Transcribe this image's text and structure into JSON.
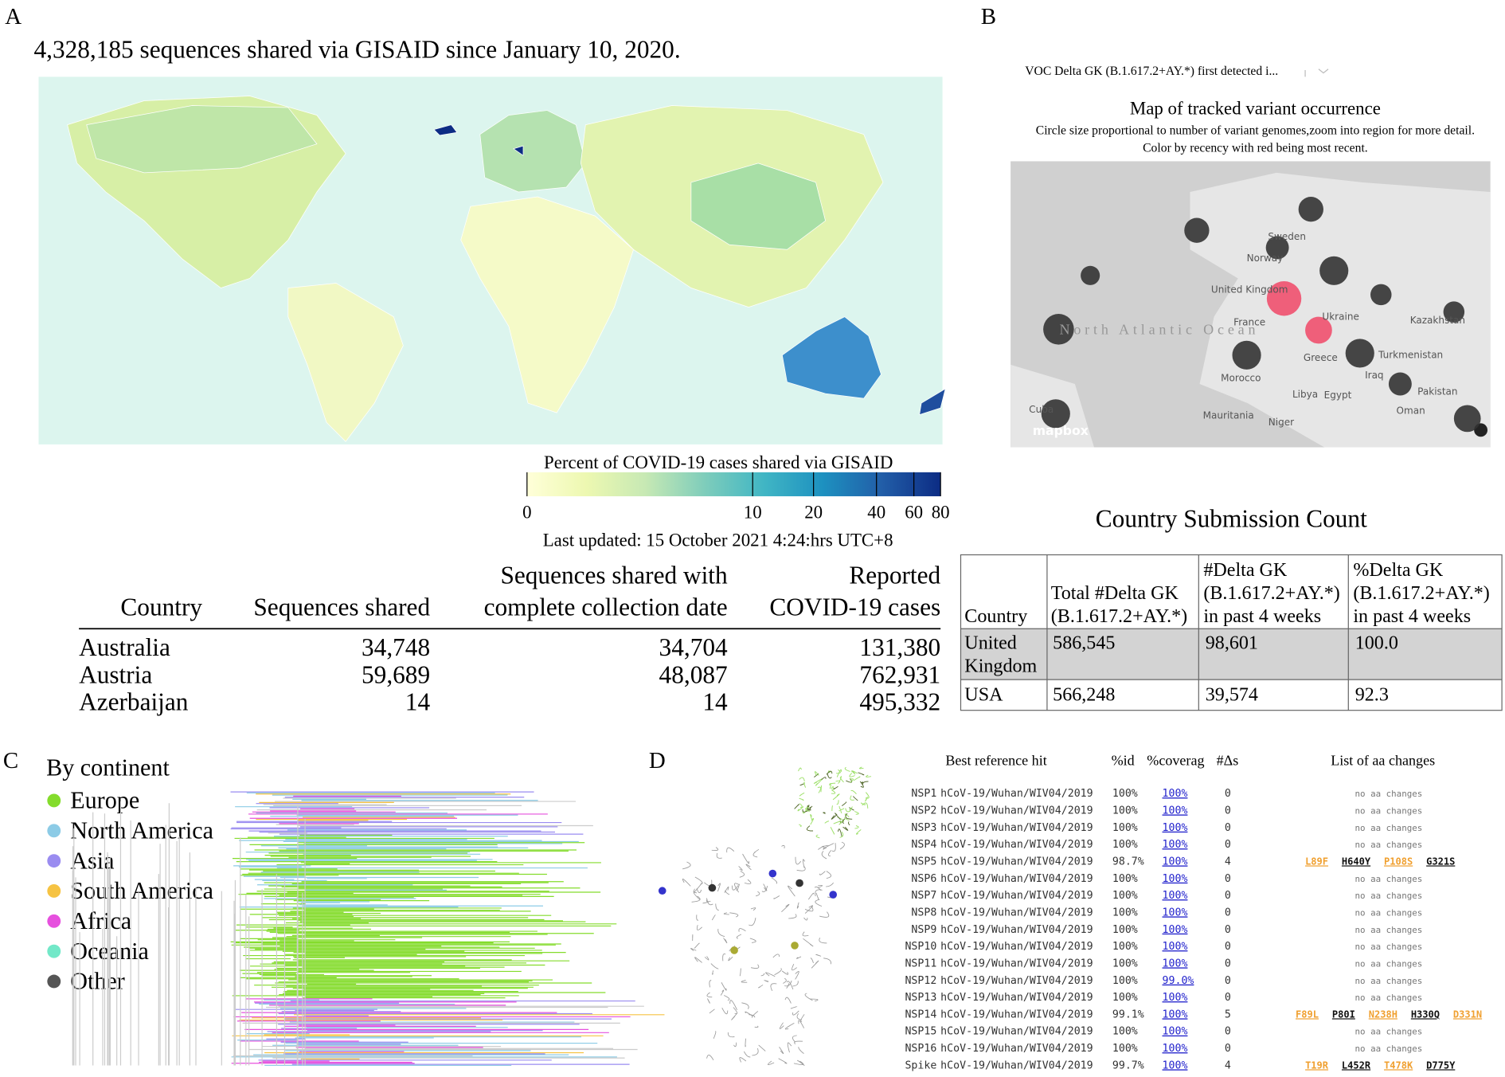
{
  "panels": [
    "A",
    "B",
    "C",
    "D"
  ],
  "panel_a": {
    "headline": "4,328,185 sequences shared via GISAID since January 10, 2020.",
    "colorbar": {
      "title": "Percent of COVID-19 cases shared via GISAID",
      "scale": "log1p",
      "lim": [
        0,
        80
      ],
      "ticks": [
        0,
        10,
        20,
        40,
        60,
        80
      ],
      "colors": [
        "#ffffd9",
        "#edf8b1",
        "#c7e9b4",
        "#7fcdbb",
        "#41b6c4",
        "#1d91c0",
        "#225ea8",
        "#0c2c84"
      ]
    },
    "updated": "Last updated: 15 October 2021 4:24:hrs UTC+8",
    "table": {
      "columns": [
        [
          "Country"
        ],
        [
          "Sequences shared"
        ],
        [
          "Sequences shared with",
          "complete collection date"
        ],
        [
          "Reported",
          "COVID-19 cases"
        ]
      ],
      "rows": [
        [
          "Australia",
          "34,748",
          "34,704",
          "131,380"
        ],
        [
          "Austria",
          "59,689",
          "48,087",
          "762,931"
        ],
        [
          "Azerbaijan",
          "14",
          "14",
          "495,332"
        ]
      ]
    }
  },
  "panel_b": {
    "dropdown": "VOC Delta GK (B.1.617.2+AY.*) first detected i...",
    "map_title": "Map of tracked variant occurrence",
    "map_subtitle": [
      "Circle size proportional to number of variant genomes,zoom into region for more detail.",
      "Color by recency with red being most recent."
    ],
    "map_labels": [
      "Sweden",
      "Norway",
      "United Kingdom",
      "France",
      "Ukraine",
      "Greece",
      "Morocco",
      "Libya",
      "Egypt",
      "Iraq",
      "Pakistan",
      "Kazakhstan",
      "Turkmenistan",
      "Oman",
      "Mauritania",
      "Niger",
      "Cuba",
      "North Atlantic Ocean",
      "mapbox"
    ],
    "table_title": "Country Submission Count",
    "table": {
      "columns": [
        [
          "Country"
        ],
        [
          "Total #Delta GK",
          "(B.1.617.2+AY.*)"
        ],
        [
          "#Delta GK",
          "(B.1.617.2+AY.*)",
          "in past 4 weeks"
        ],
        [
          "%Delta GK",
          "(B.1.617.2+AY.*)",
          "in past 4 weeks"
        ]
      ],
      "rows": [
        [
          [
            "United",
            "Kingdom"
          ],
          [
            "586,545"
          ],
          [
            "98,601"
          ],
          [
            "100.0"
          ]
        ],
        [
          [
            "USA"
          ],
          [
            "566,248"
          ],
          [
            "39,574"
          ],
          [
            "92.3"
          ]
        ]
      ]
    }
  },
  "panel_c": {
    "legend_title": "By continent",
    "legend": [
      {
        "name": "Europe",
        "color": "#84dc2c"
      },
      {
        "name": "North America",
        "color": "#8ccbe6"
      },
      {
        "name": "Asia",
        "color": "#9a8cf0"
      },
      {
        "name": "South America",
        "color": "#f6c343"
      },
      {
        "name": "Africa",
        "color": "#e650de"
      },
      {
        "name": "Oceania",
        "color": "#72e8c8"
      },
      {
        "name": "Other",
        "color": "#555555"
      }
    ]
  },
  "panel_d": {
    "columns": [
      "Best reference hit",
      "%id",
      "%coverag",
      "#Δs",
      "List of aa changes"
    ],
    "rows": [
      [
        "NSP1",
        "hCoV-19/Wuhan/WIV04/2019",
        "100%",
        "100%",
        "0",
        [
          "no aa changes"
        ]
      ],
      [
        "NSP2",
        "hCoV-19/Wuhan/WIV04/2019",
        "100%",
        "100%",
        "0",
        [
          "no aa changes"
        ]
      ],
      [
        "NSP3",
        "hCoV-19/Wuhan/WIV04/2019",
        "100%",
        "100%",
        "0",
        [
          "no aa changes"
        ]
      ],
      [
        "NSP4",
        "hCoV-19/Wuhan/WIV04/2019",
        "100%",
        "100%",
        "0",
        [
          "no aa changes"
        ]
      ],
      [
        "NSP5",
        "hCoV-19/Wuhan/WIV04/2019",
        "98.7%",
        "100%",
        "4",
        [
          "L89F",
          "H640Y",
          "P108S",
          "G321S"
        ]
      ],
      [
        "NSP6",
        "hCoV-19/Wuhan/WIV04/2019",
        "100%",
        "100%",
        "0",
        [
          "no aa changes"
        ]
      ],
      [
        "NSP7",
        "hCoV-19/Wuhan/WIV04/2019",
        "100%",
        "100%",
        "0",
        [
          "no aa changes"
        ]
      ],
      [
        "NSP8",
        "hCoV-19/Wuhan/WIV04/2019",
        "100%",
        "100%",
        "0",
        [
          "no aa changes"
        ]
      ],
      [
        "NSP9",
        "hCoV-19/Wuhan/WIV04/2019",
        "100%",
        "100%",
        "0",
        [
          "no aa changes"
        ]
      ],
      [
        "NSP10",
        "hCoV-19/Wuhan/WIV04/2019",
        "100%",
        "100%",
        "0",
        [
          "no aa changes"
        ]
      ],
      [
        "NSP11",
        "hCoV-19/Wuhan/WIV04/2019",
        "100%",
        "100%",
        "0",
        [
          "no aa changes"
        ]
      ],
      [
        "NSP12",
        "hCoV-19/Wuhan/WIV04/2019",
        "100%",
        "99.0%",
        "0",
        [
          "no aa changes"
        ]
      ],
      [
        "NSP13",
        "hCoV-19/Wuhan/WIV04/2019",
        "100%",
        "100%",
        "0",
        [
          "no aa changes"
        ]
      ],
      [
        "NSP14",
        "hCoV-19/Wuhan/WIV04/2019",
        "99.1%",
        "100%",
        "5",
        [
          "F89L",
          "P80I",
          "N238H",
          "H330Q",
          "D331N"
        ]
      ],
      [
        "NSP15",
        "hCoV-19/Wuhan/WIV04/2019",
        "100%",
        "100%",
        "0",
        [
          "no aa changes"
        ]
      ],
      [
        "NSP16",
        "hCoV-19/Wuhan/WIV04/2019",
        "100%",
        "100%",
        "0",
        [
          "no aa changes"
        ]
      ],
      [
        "Spike",
        "hCoV-19/Wuhan/WIV04/2019",
        "99.7%",
        "100%",
        "4",
        [
          "T19R",
          "L452R",
          "T478K",
          "D775Y"
        ]
      ]
    ]
  }
}
